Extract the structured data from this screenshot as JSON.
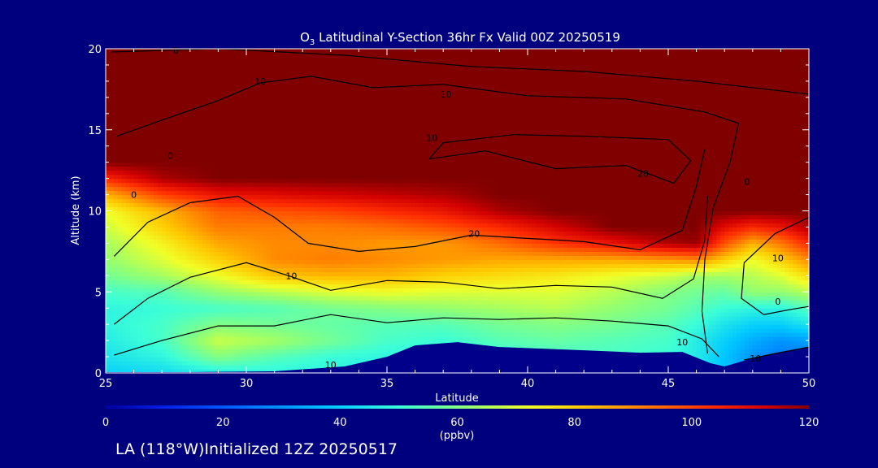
{
  "chart_data": {
    "type": "heatmap",
    "title_prefix": "O",
    "title_subscript": "3",
    "title_rest": " Latitudinal Y-Section 36hr  Fx Valid 00Z 20250519",
    "xlabel": "Latitude",
    "ylabel": "Altitude (km)",
    "xlim": [
      25,
      50
    ],
    "ylim": [
      0,
      20
    ],
    "xticks": [
      25,
      30,
      35,
      40,
      45,
      50
    ],
    "yticks": [
      0,
      5,
      10,
      15,
      20
    ],
    "colorbar": {
      "min": 0,
      "max": 120,
      "ticks": [
        0,
        20,
        40,
        60,
        80,
        100,
        120
      ],
      "unit": "(ppbv)"
    },
    "colors": {
      "background": "#00007f",
      "text": "#ffffff",
      "contour": "#000000",
      "terrain": "#00008b"
    },
    "terrain_km": {
      "lat": [
        25,
        28,
        31,
        33.5,
        35,
        36,
        37.5,
        39,
        42,
        44,
        45.5,
        46.5,
        47,
        48,
        49,
        50
      ],
      "alt": [
        0.05,
        0.05,
        0.1,
        0.4,
        1.0,
        1.7,
        1.9,
        1.6,
        1.4,
        1.25,
        1.3,
        0.6,
        0.4,
        0.9,
        1.3,
        1.6
      ]
    },
    "ozone_field_ppbv": {
      "lat": [
        25,
        27,
        29,
        31,
        33,
        35,
        37,
        39,
        41,
        43,
        45,
        46,
        47,
        48,
        49,
        50
      ],
      "alt": [
        0,
        1,
        2,
        3,
        4,
        5,
        6,
        7,
        8,
        9,
        10,
        11,
        12,
        13,
        14,
        15,
        16,
        17,
        18,
        19,
        20
      ],
      "values": [
        [
          40,
          42,
          46,
          48,
          48,
          46,
          46,
          48,
          50,
          50,
          48,
          46,
          38,
          30,
          26,
          24
        ],
        [
          44,
          48,
          60,
          54,
          50,
          48,
          48,
          50,
          52,
          52,
          50,
          46,
          38,
          30,
          26,
          26
        ],
        [
          46,
          52,
          68,
          64,
          58,
          52,
          50,
          54,
          56,
          54,
          52,
          46,
          40,
          34,
          30,
          32
        ],
        [
          48,
          52,
          60,
          58,
          56,
          54,
          54,
          58,
          60,
          58,
          54,
          50,
          44,
          40,
          40,
          44
        ],
        [
          48,
          50,
          52,
          54,
          58,
          60,
          62,
          64,
          66,
          62,
          58,
          54,
          50,
          48,
          48,
          54
        ],
        [
          52,
          54,
          62,
          66,
          70,
          72,
          70,
          70,
          70,
          66,
          60,
          58,
          56,
          62,
          62,
          66
        ],
        [
          58,
          64,
          72,
          82,
          84,
          84,
          80,
          78,
          76,
          72,
          68,
          64,
          64,
          66,
          70,
          78
        ],
        [
          62,
          70,
          80,
          90,
          92,
          90,
          88,
          86,
          86,
          86,
          88,
          90,
          80,
          72,
          80,
          90
        ],
        [
          64,
          74,
          86,
          90,
          90,
          88,
          88,
          94,
          102,
          108,
          116,
          118,
          98,
          84,
          92,
          104
        ],
        [
          68,
          80,
          92,
          92,
          92,
          94,
          98,
          104,
          112,
          120,
          120,
          120,
          110,
          104,
          108,
          116
        ],
        [
          72,
          84,
          96,
          98,
          100,
          104,
          108,
          116,
          120,
          120,
          120,
          120,
          120,
          120,
          120,
          120
        ],
        [
          84,
          100,
          108,
          110,
          112,
          114,
          116,
          120,
          120,
          120,
          120,
          120,
          120,
          120,
          120,
          120
        ],
        [
          104,
          116,
          120,
          120,
          120,
          120,
          120,
          120,
          120,
          120,
          120,
          120,
          120,
          120,
          120,
          120
        ],
        [
          120,
          120,
          120,
          120,
          120,
          120,
          120,
          120,
          120,
          120,
          120,
          120,
          120,
          120,
          120,
          120
        ],
        [
          120,
          120,
          120,
          120,
          120,
          120,
          120,
          120,
          120,
          120,
          120,
          120,
          120,
          120,
          120,
          120
        ],
        [
          120,
          120,
          120,
          120,
          120,
          120,
          120,
          120,
          120,
          120,
          120,
          120,
          120,
          120,
          120,
          120
        ],
        [
          120,
          120,
          120,
          120,
          120,
          120,
          120,
          120,
          120,
          120,
          120,
          120,
          120,
          120,
          120,
          120
        ],
        [
          120,
          120,
          120,
          120,
          120,
          120,
          120,
          120,
          120,
          120,
          120,
          120,
          120,
          120,
          120,
          120
        ],
        [
          120,
          120,
          120,
          120,
          120,
          120,
          120,
          120,
          120,
          120,
          120,
          120,
          120,
          120,
          120,
          120
        ],
        [
          120,
          120,
          120,
          120,
          120,
          120,
          120,
          120,
          120,
          120,
          120,
          120,
          120,
          120,
          120,
          120
        ],
        [
          120,
          120,
          120,
          120,
          120,
          120,
          120,
          120,
          120,
          120,
          120,
          120,
          120,
          120,
          120,
          120
        ]
      ]
    },
    "contour_lines": [
      {
        "label": "10",
        "points": [
          [
            25.3,
            1.1
          ],
          [
            27,
            2.0
          ],
          [
            29,
            2.9
          ],
          [
            31,
            2.9
          ],
          [
            33,
            3.6
          ],
          [
            35,
            3.1
          ],
          [
            37,
            3.4
          ],
          [
            39,
            3.3
          ],
          [
            41,
            3.4
          ],
          [
            43,
            3.2
          ],
          [
            45,
            2.9
          ],
          [
            46.2,
            2.1
          ],
          [
            46.8,
            1.0
          ]
        ]
      },
      {
        "label": "10",
        "points": [
          [
            25.3,
            3.0
          ],
          [
            26.5,
            4.6
          ],
          [
            28,
            5.9
          ],
          [
            30,
            6.8
          ],
          [
            31.5,
            6.0
          ],
          [
            33,
            5.1
          ],
          [
            35,
            5.7
          ],
          [
            37,
            5.6
          ],
          [
            39,
            5.2
          ],
          [
            41,
            5.4
          ],
          [
            43,
            5.3
          ],
          [
            44.8,
            4.6
          ],
          [
            45.9,
            5.8
          ],
          [
            46.3,
            8.2
          ],
          [
            46.4,
            10.9
          ]
        ]
      },
      {
        "label": "20",
        "points": [
          [
            25.3,
            7.2
          ],
          [
            26.5,
            9.3
          ],
          [
            28,
            10.5
          ],
          [
            29.7,
            10.9
          ],
          [
            31,
            9.6
          ],
          [
            32.2,
            8.0
          ],
          [
            34,
            7.5
          ],
          [
            36,
            7.8
          ],
          [
            38,
            8.5
          ],
          [
            40,
            8.3
          ],
          [
            42,
            8.1
          ],
          [
            44,
            7.6
          ],
          [
            45.5,
            8.8
          ],
          [
            46.0,
            11.5
          ],
          [
            46.3,
            13.8
          ]
        ]
      },
      {
        "label": "20",
        "points": [
          [
            36.5,
            13.2
          ],
          [
            38.5,
            13.7
          ],
          [
            41,
            12.6
          ],
          [
            43.5,
            12.8
          ],
          [
            45.2,
            11.7
          ],
          [
            45.8,
            13.1
          ],
          [
            45,
            14.4
          ],
          [
            42,
            14.6
          ],
          [
            39.5,
            14.7
          ],
          [
            37,
            14.2
          ],
          [
            36.5,
            13.2
          ]
        ]
      },
      {
        "label": "10",
        "points": [
          [
            25.4,
            14.6
          ],
          [
            27,
            15.6
          ],
          [
            29,
            16.8
          ],
          [
            30.5,
            17.9
          ],
          [
            32.3,
            18.3
          ],
          [
            34.5,
            17.6
          ],
          [
            37,
            17.8
          ],
          [
            40,
            17.1
          ],
          [
            43.5,
            16.9
          ],
          [
            46.3,
            16.1
          ],
          [
            47.5,
            15.4
          ],
          [
            47.2,
            13.0
          ],
          [
            46.6,
            10.2
          ],
          [
            46.3,
            7.0
          ],
          [
            46.2,
            3.8
          ],
          [
            46.4,
            1.2
          ]
        ]
      },
      {
        "label": "0",
        "points": [
          [
            25.2,
            19.8
          ],
          [
            29,
            20.0
          ],
          [
            33.5,
            19.6
          ],
          [
            38,
            18.9
          ],
          [
            42,
            18.6
          ],
          [
            46,
            18.0
          ],
          [
            50,
            17.2
          ]
        ]
      },
      {
        "label": "10",
        "points": [
          [
            50,
            9.6
          ],
          [
            48.8,
            8.6
          ],
          [
            47.7,
            6.8
          ],
          [
            47.6,
            4.6
          ],
          [
            48.4,
            3.6
          ],
          [
            49.3,
            3.9
          ],
          [
            50,
            4.1
          ]
        ]
      },
      {
        "label": "10",
        "points": [
          [
            47.7,
            0.8
          ],
          [
            48.8,
            1.2
          ],
          [
            50,
            1.6
          ]
        ]
      }
    ],
    "contour_labels": [
      {
        "text": "0",
        "lat": 27.3,
        "alt": 13.4
      },
      {
        "text": "0",
        "lat": 27.5,
        "alt": 19.9
      },
      {
        "text": "10",
        "lat": 30.5,
        "alt": 18.0
      },
      {
        "text": "10",
        "lat": 37.1,
        "alt": 17.2
      },
      {
        "text": "10",
        "lat": 36.6,
        "alt": 14.5
      },
      {
        "text": "20",
        "lat": 44.1,
        "alt": 12.3
      },
      {
        "text": "20",
        "lat": 38.1,
        "alt": 8.6
      },
      {
        "text": "10",
        "lat": 31.6,
        "alt": 6.0
      },
      {
        "text": "10",
        "lat": 33.0,
        "alt": 0.5
      },
      {
        "text": "10",
        "lat": 45.5,
        "alt": 1.9
      },
      {
        "text": "10",
        "lat": 48.1,
        "alt": 0.9
      },
      {
        "text": "10",
        "lat": 48.9,
        "alt": 7.1
      },
      {
        "text": "0",
        "lat": 48.9,
        "alt": 4.4
      },
      {
        "text": "0",
        "lat": 26.0,
        "alt": 11.0
      },
      {
        "text": "0",
        "lat": 47.8,
        "alt": 11.8
      }
    ]
  },
  "footer": {
    "location": "LA (118°W)Initialized 12Z 20250517"
  }
}
